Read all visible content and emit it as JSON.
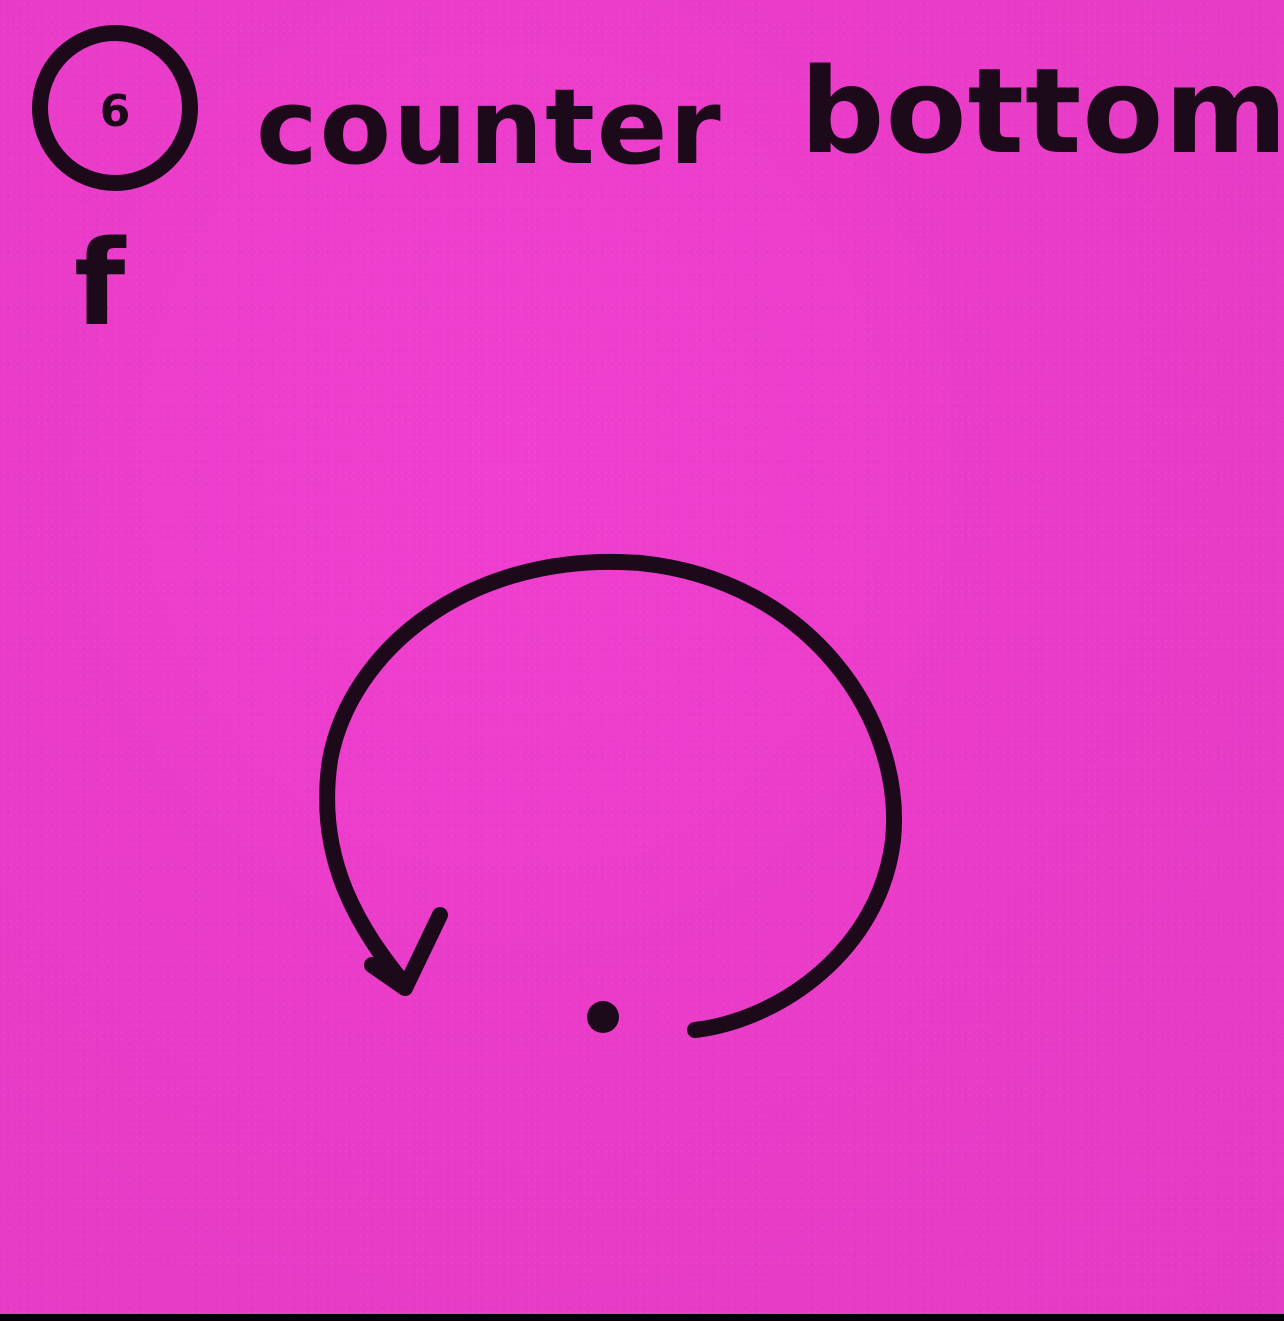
{
  "note": {
    "paper_color": "#ea3cc9",
    "ink_color": "#1c0a1a",
    "step_number": "6",
    "title_words": [
      "counter",
      "bottom"
    ],
    "side_letter": "f"
  },
  "drawing": {
    "arrow_icon": "counterclockwise-arrow-icon",
    "dot_icon": "center-dot-icon"
  }
}
